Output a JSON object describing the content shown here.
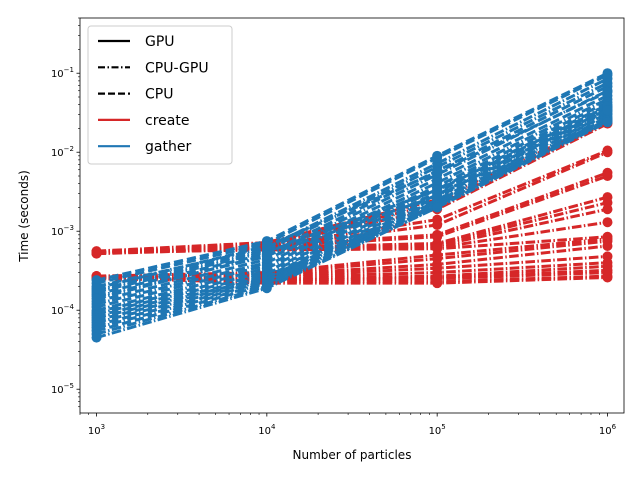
{
  "chart_data": {
    "type": "line",
    "xscale": "log",
    "yscale": "log",
    "xlabel": "Number of particles",
    "ylabel": "Time (seconds)",
    "xlim": [
      800,
      1250000
    ],
    "ylim": [
      5e-06,
      0.5
    ],
    "xticks": [
      {
        "value": 1000,
        "base": "10",
        "exp": "3"
      },
      {
        "value": 10000,
        "base": "10",
        "exp": "4"
      },
      {
        "value": 100000,
        "base": "10",
        "exp": "5"
      },
      {
        "value": 1000000,
        "base": "10",
        "exp": "6"
      }
    ],
    "yticks": [
      {
        "value": 1e-05,
        "base": "10",
        "exp": "−5"
      },
      {
        "value": 0.0001,
        "base": "10",
        "exp": "−4"
      },
      {
        "value": 0.001,
        "base": "10",
        "exp": "−3"
      },
      {
        "value": 0.01,
        "base": "10",
        "exp": "−2"
      },
      {
        "value": 0.1,
        "base": "10",
        "exp": "−1"
      }
    ],
    "x": [
      1000,
      10000,
      100000,
      1000000
    ],
    "colors": {
      "create": "#d62728",
      "gather": "#1f77b4"
    },
    "legend": {
      "placement": "top-left",
      "entries": [
        {
          "label": "GPU",
          "style": "solid",
          "color": "#000000"
        },
        {
          "label": "CPU-GPU",
          "style": "dashdot",
          "color": "#000000"
        },
        {
          "label": "CPU",
          "style": "dashed",
          "color": "#000000"
        },
        {
          "label": "create",
          "style": "solid",
          "color": "#d62728"
        },
        {
          "label": "gather",
          "style": "solid",
          "color": "#1f77b4"
        }
      ]
    },
    "series": [
      {
        "group": "create",
        "style": "dashdot",
        "values": [
          0.00055,
          0.0007,
          0.0022,
          0.024
        ]
      },
      {
        "group": "create",
        "style": "dashdot",
        "values": [
          0.00054,
          0.00068,
          0.0019,
          0.023
        ]
      },
      {
        "group": "create",
        "style": "dashdot",
        "values": [
          0.00056,
          0.00072,
          0.0025,
          0.025
        ]
      },
      {
        "group": "create",
        "style": "dashdot",
        "values": [
          0.00053,
          0.00065,
          0.0014,
          0.0105
        ]
      },
      {
        "group": "create",
        "style": "dashdot",
        "values": [
          0.00052,
          0.00063,
          0.0012,
          0.01
        ]
      },
      {
        "group": "create",
        "style": "dashdot",
        "values": [
          0.00055,
          0.00066,
          0.0009,
          0.0055
        ]
      },
      {
        "group": "create",
        "style": "dashdot",
        "values": [
          0.00053,
          0.00064,
          0.00085,
          0.005
        ]
      },
      {
        "group": "create",
        "style": "dashdot",
        "values": [
          0.00054,
          0.00062,
          0.0007,
          0.0027
        ]
      },
      {
        "group": "create",
        "style": "dashdot",
        "values": [
          0.00052,
          0.0006,
          0.00068,
          0.0023
        ]
      },
      {
        "group": "create",
        "style": "dashdot",
        "values": [
          0.00055,
          0.00061,
          0.00065,
          0.0019
        ]
      },
      {
        "group": "create",
        "style": "dashdot",
        "values": [
          0.00053,
          0.0006,
          0.00062,
          0.0013
        ]
      },
      {
        "group": "create",
        "style": "dashdot",
        "values": [
          0.00054,
          0.00058,
          0.0006,
          0.00085
        ]
      },
      {
        "group": "create",
        "style": "dashdot",
        "values": [
          0.00027,
          0.0003,
          0.0005,
          0.0008
        ]
      },
      {
        "group": "create",
        "style": "dashdot",
        "values": [
          0.00026,
          0.00029,
          0.00045,
          0.00075
        ]
      },
      {
        "group": "create",
        "style": "dashdot",
        "values": [
          0.00027,
          0.00028,
          0.00038,
          0.00065
        ]
      },
      {
        "group": "create",
        "style": "dashdot",
        "values": [
          0.00026,
          0.00027,
          0.00034,
          0.00048
        ]
      },
      {
        "group": "create",
        "style": "dashdot",
        "values": [
          0.00025,
          0.00026,
          0.0003,
          0.0004
        ]
      },
      {
        "group": "create",
        "style": "dashdot",
        "values": [
          0.00026,
          0.00025,
          0.00027,
          0.00036
        ]
      },
      {
        "group": "create",
        "style": "dashdot",
        "values": [
          0.00027,
          0.00024,
          0.00025,
          0.0003
        ]
      },
      {
        "group": "create",
        "style": "dashdot",
        "values": [
          0.00025,
          0.00023,
          0.00023,
          0.00027
        ]
      },
      {
        "group": "create",
        "style": "dashdot",
        "values": [
          0.00026,
          0.00022,
          0.00022,
          0.00026
        ]
      },
      {
        "group": "create",
        "style": "dashdot",
        "values": [
          0.00027,
          0.00024,
          0.00026,
          0.00032
        ]
      },
      {
        "group": "gather",
        "style": "dashed",
        "values": [
          0.00024,
          0.00075,
          0.009,
          0.1
        ]
      },
      {
        "group": "gather",
        "style": "dashed",
        "values": [
          0.00022,
          0.0007,
          0.0085,
          0.095
        ]
      },
      {
        "group": "gather",
        "style": "dashdot",
        "values": [
          0.0002,
          0.00062,
          0.0072,
          0.085
        ]
      },
      {
        "group": "gather",
        "style": "dashdot",
        "values": [
          0.00018,
          0.00058,
          0.0065,
          0.075
        ]
      },
      {
        "group": "gather",
        "style": "dashed",
        "values": [
          0.00016,
          0.00052,
          0.0058,
          0.068
        ]
      },
      {
        "group": "gather",
        "style": "dashdot",
        "values": [
          0.00015,
          0.00048,
          0.0052,
          0.06
        ]
      },
      {
        "group": "gather",
        "style": "dashed",
        "values": [
          0.00013,
          0.00044,
          0.0046,
          0.052
        ]
      },
      {
        "group": "gather",
        "style": "dashdot",
        "values": [
          0.00012,
          0.0004,
          0.0041,
          0.047
        ]
      },
      {
        "group": "gather",
        "style": "dashed",
        "values": [
          0.00011,
          0.00037,
          0.0037,
          0.043
        ]
      },
      {
        "group": "gather",
        "style": "dashdot",
        "values": [
          0.0001,
          0.00034,
          0.0034,
          0.04
        ]
      },
      {
        "group": "gather",
        "style": "dashed",
        "values": [
          9.5e-05,
          0.00031,
          0.0031,
          0.037
        ]
      },
      {
        "group": "gather",
        "style": "dashdot",
        "values": [
          9e-05,
          0.00029,
          0.0029,
          0.035
        ]
      },
      {
        "group": "gather",
        "style": "dashed",
        "values": [
          8.5e-05,
          0.00027,
          0.0027,
          0.033
        ]
      },
      {
        "group": "gather",
        "style": "dashdot",
        "values": [
          8e-05,
          0.00026,
          0.0025,
          0.031
        ]
      },
      {
        "group": "gather",
        "style": "dashed",
        "values": [
          7.5e-05,
          0.00025,
          0.0024,
          0.03
        ]
      },
      {
        "group": "gather",
        "style": "dashdot",
        "values": [
          7e-05,
          0.00024,
          0.0023,
          0.028
        ]
      },
      {
        "group": "gather",
        "style": "dashed",
        "values": [
          6.5e-05,
          0.00023,
          0.0022,
          0.027
        ]
      },
      {
        "group": "gather",
        "style": "dashdot",
        "values": [
          6e-05,
          0.00022,
          0.0021,
          0.026
        ]
      },
      {
        "group": "gather",
        "style": "dashed",
        "values": [
          5.5e-05,
          0.00021,
          0.0021,
          0.025
        ]
      },
      {
        "group": "gather",
        "style": "dashdot",
        "values": [
          5e-05,
          0.0002,
          0.002,
          0.025
        ]
      },
      {
        "group": "gather",
        "style": "dashdot",
        "values": [
          4.5e-05,
          0.00019,
          0.002,
          0.024
        ]
      },
      {
        "group": "gather",
        "style": "dashdot",
        "values": [
          0.00017,
          0.00055,
          0.0033,
          0.038
        ]
      },
      {
        "group": "gather",
        "style": "dashdot",
        "values": [
          0.00014,
          0.0005,
          0.0028,
          0.034
        ]
      },
      {
        "group": "gather",
        "style": "dashed",
        "values": [
          0.00019,
          0.00065,
          0.0056,
          0.058
        ]
      }
    ]
  }
}
